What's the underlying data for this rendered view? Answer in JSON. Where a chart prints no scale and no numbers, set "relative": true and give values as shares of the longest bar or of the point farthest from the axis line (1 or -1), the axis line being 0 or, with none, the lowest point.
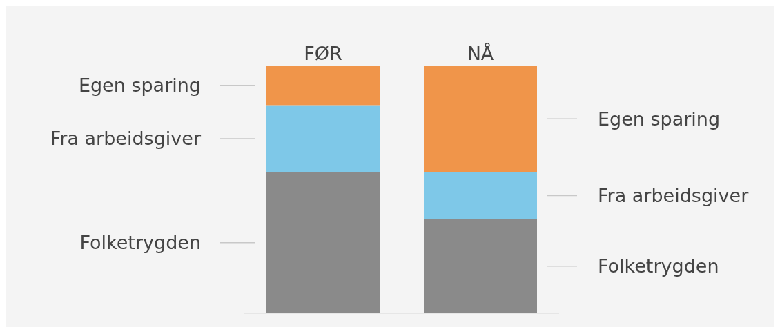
{
  "chart_data": {
    "type": "bar",
    "stacked": true,
    "relative": true,
    "legend": false,
    "categories": [
      "FØR",
      "NÅ"
    ],
    "series": [
      {
        "name": "Folketrygden",
        "color": "#8a8a8a",
        "values": [
          0.57,
          0.38
        ]
      },
      {
        "name": "Fra arbeidsgiver",
        "color": "#7ec8e8",
        "values": [
          0.27,
          0.19
        ]
      },
      {
        "name": "Egen sparing",
        "color": "#f0954a",
        "values": [
          0.16,
          0.43
        ]
      }
    ]
  }
}
